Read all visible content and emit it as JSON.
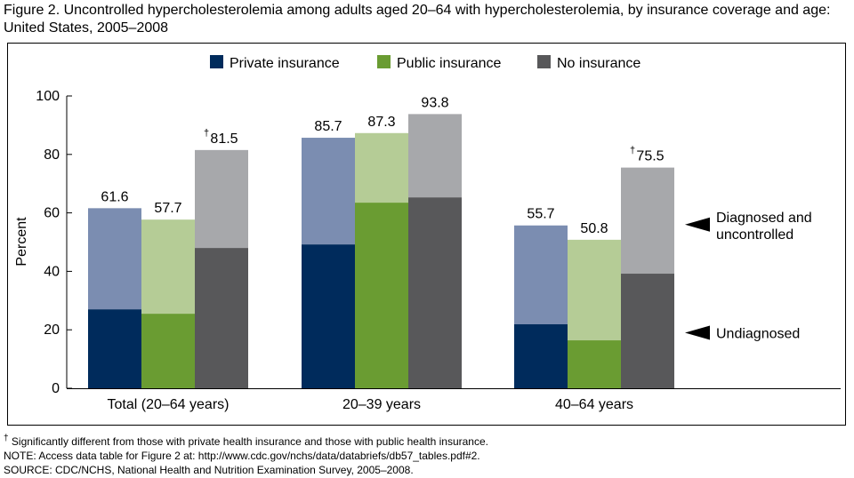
{
  "title": "Figure 2. Uncontrolled hypercholesterolemia among adults aged 20–64 with hypercholesterolemia, by insurance coverage and age: United States, 2005–2008",
  "notes": {
    "dagger": "†",
    "footnote": "Significantly different from those with private health insurance and those with public health insurance.",
    "note": "NOTE: Access data table for Figure 2 at: http://www.cdc.gov/nchs/data/databriefs/db57_tables.pdf#2.",
    "source": "SOURCE: CDC/NCHS, National Health and Nutrition Examination Survey, 2005–2008."
  },
  "chart_data": {
    "type": "bar",
    "stacked": true,
    "ylabel": "Percent",
    "ylim": [
      0,
      100
    ],
    "yticks": [
      0,
      20,
      40,
      60,
      80,
      100
    ],
    "categories": [
      "Total (20–64 years)",
      "20–39 years",
      "40–64 years"
    ],
    "legend_position": "top",
    "series": [
      {
        "name": "Private insurance",
        "color_dark": "#002b5c",
        "color_light": "#7b8db1",
        "undiagnosed": [
          27.0,
          49.2,
          21.9
        ],
        "total": [
          61.6,
          85.7,
          55.7
        ],
        "labels": [
          "61.6",
          "85.7",
          "55.7"
        ],
        "dagger": [
          false,
          false,
          false
        ]
      },
      {
        "name": "Public insurance",
        "color_dark": "#6a9c32",
        "color_light": "#b5cc96",
        "undiagnosed": [
          25.5,
          63.5,
          16.4
        ],
        "total": [
          57.7,
          87.3,
          50.8
        ],
        "labels": [
          "57.7",
          "87.3",
          "50.8"
        ],
        "dagger": [
          false,
          false,
          false
        ]
      },
      {
        "name": "No insurance",
        "color_dark": "#58585a",
        "color_light": "#a7a8ab",
        "undiagnosed": [
          48.0,
          65.3,
          39.2
        ],
        "total": [
          81.5,
          93.8,
          75.5
        ],
        "labels": [
          "81.5",
          "93.8",
          "75.5"
        ],
        "dagger": [
          true,
          false,
          true
        ]
      }
    ],
    "annotations": [
      {
        "text": [
          "Diagnosed and",
          "uncontrolled"
        ],
        "value": 56
      },
      {
        "text": [
          "Undiagnosed"
        ],
        "value": 19
      }
    ]
  }
}
